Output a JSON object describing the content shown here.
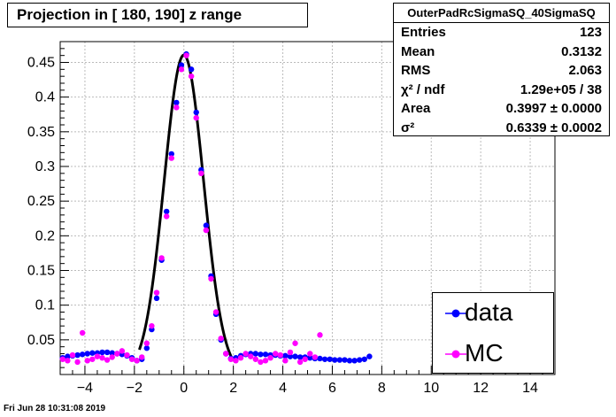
{
  "header": {
    "title": "Projection in [ 180, 190] z range"
  },
  "stats": {
    "name": "OuterPadRcSigmaSQ_40SigmaSQ",
    "rows": [
      {
        "key": "Entries",
        "value": "123"
      },
      {
        "key": "Mean",
        "value": "0.3132"
      },
      {
        "key": "RMS",
        "value": "2.063"
      },
      {
        "key": "χ² / ndf",
        "value": "1.29e+05 / 38"
      },
      {
        "key": "Area",
        "value": "0.3997 ± 0.0000"
      },
      {
        "key": "σ²",
        "value": "0.6339 ± 0.0002"
      }
    ]
  },
  "legend": [
    {
      "label": "data",
      "color": "#0000ff"
    },
    {
      "label": "MC",
      "color": "#ff00ff"
    }
  ],
  "footer": {
    "timestamp": "Fri Jun 28 10:31:08 2019"
  },
  "colors": {
    "data": "#0000ff",
    "mc": "#ff00ff",
    "fit": "#000000",
    "grid": "#bbbbbb"
  },
  "chart_data": {
    "type": "scatter",
    "xlim": [
      -5,
      15
    ],
    "ylim": [
      0,
      0.48
    ],
    "grid": true,
    "legend_position": "bottom-right",
    "xticks": [
      "−4",
      "−2",
      "0",
      "2",
      "4",
      "6",
      "8",
      "10",
      "12",
      "14"
    ],
    "yticks": [
      "0.05",
      "0.1",
      "0.15",
      "0.2",
      "0.25",
      "0.3",
      "0.35",
      "0.4",
      "0.45"
    ],
    "fit": {
      "type": "gaussian",
      "area": 0.3997,
      "sigma_sq": 0.6339,
      "range": [
        -1.8,
        2.0
      ]
    },
    "series": [
      {
        "name": "data",
        "x": [
          -4.9,
          -4.7,
          -4.5,
          -4.3,
          -4.1,
          -3.9,
          -3.7,
          -3.5,
          -3.3,
          -3.1,
          -2.9,
          -2.7,
          -2.5,
          -2.3,
          -2.1,
          -1.9,
          -1.7,
          -1.5,
          -1.3,
          -1.1,
          -0.9,
          -0.7,
          -0.5,
          -0.3,
          -0.1,
          0.1,
          0.3,
          0.5,
          0.7,
          0.9,
          1.1,
          1.3,
          1.5,
          1.7,
          1.9,
          2.1,
          2.3,
          2.5,
          2.7,
          2.9,
          3.1,
          3.3,
          3.5,
          3.7,
          3.9,
          4.1,
          4.3,
          4.5,
          4.7,
          4.9,
          5.1,
          5.3,
          5.5,
          5.7,
          5.9,
          6.1,
          6.3,
          6.5,
          6.7,
          6.9,
          7.1,
          7.3,
          7.5
        ],
        "values": [
          0.024,
          0.026,
          0.027,
          0.028,
          0.029,
          0.03,
          0.031,
          0.031,
          0.032,
          0.032,
          0.031,
          0.03,
          0.029,
          0.027,
          0.024,
          0.02,
          0.022,
          0.038,
          0.065,
          0.11,
          0.165,
          0.235,
          0.318,
          0.392,
          0.446,
          0.462,
          0.44,
          0.378,
          0.295,
          0.215,
          0.142,
          0.087,
          0.05,
          0.03,
          0.023,
          0.024,
          0.027,
          0.029,
          0.03,
          0.03,
          0.029,
          0.029,
          0.028,
          0.028,
          0.027,
          0.027,
          0.026,
          0.026,
          0.025,
          0.025,
          0.024,
          0.023,
          0.023,
          0.022,
          0.022,
          0.021,
          0.021,
          0.021,
          0.02,
          0.02,
          0.021,
          0.022,
          0.026
        ]
      },
      {
        "name": "MC",
        "x": [
          -4.9,
          -4.7,
          -4.5,
          -4.3,
          -4.1,
          -3.9,
          -3.7,
          -3.5,
          -3.3,
          -3.1,
          -2.9,
          -2.7,
          -2.5,
          -2.3,
          -2.1,
          -1.9,
          -1.7,
          -1.5,
          -1.3,
          -1.1,
          -0.9,
          -0.7,
          -0.5,
          -0.3,
          -0.1,
          0.1,
          0.3,
          0.5,
          0.7,
          0.9,
          1.1,
          1.3,
          1.5,
          1.7,
          1.9,
          2.1,
          2.3,
          2.5,
          2.7,
          2.9,
          3.1,
          3.3,
          3.5,
          3.7,
          3.9,
          4.1,
          4.3,
          4.5,
          4.7,
          4.9,
          5.1,
          5.3,
          5.5
        ],
        "values": [
          0.022,
          0.02,
          0.028,
          0.018,
          0.06,
          0.02,
          0.022,
          0.026,
          0.024,
          0.021,
          0.025,
          0.03,
          0.034,
          0.028,
          0.022,
          0.02,
          0.025,
          0.045,
          0.07,
          0.118,
          0.168,
          0.228,
          0.312,
          0.385,
          0.44,
          0.46,
          0.43,
          0.37,
          0.29,
          0.208,
          0.138,
          0.09,
          0.052,
          0.03,
          0.022,
          0.02,
          0.024,
          0.03,
          0.026,
          0.022,
          0.018,
          0.02,
          0.024,
          0.03,
          0.028,
          0.02,
          0.032,
          0.045,
          0.018,
          0.022,
          0.03,
          0.025,
          0.057
        ]
      }
    ]
  }
}
